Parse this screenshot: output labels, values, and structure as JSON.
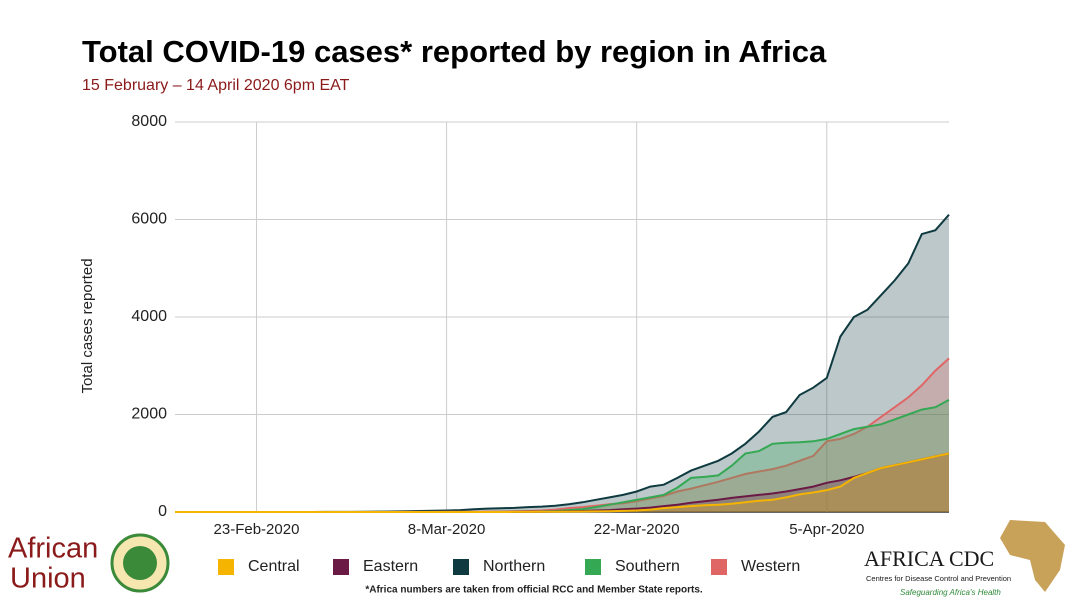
{
  "chart_data": {
    "type": "area",
    "title": "Total COVID-19 cases* reported by region in Africa",
    "subtitle": "15 February – 14 April 2020 6pm EAT",
    "y_label": "Total cases reported",
    "x": [
      "2020-02-17",
      "2020-02-18",
      "2020-02-19",
      "2020-02-20",
      "2020-02-21",
      "2020-02-22",
      "2020-02-23",
      "2020-02-24",
      "2020-02-25",
      "2020-02-26",
      "2020-02-27",
      "2020-02-28",
      "2020-02-29",
      "2020-03-01",
      "2020-03-02",
      "2020-03-03",
      "2020-03-04",
      "2020-03-05",
      "2020-03-06",
      "2020-03-07",
      "2020-03-08",
      "2020-03-09",
      "2020-03-10",
      "2020-03-11",
      "2020-03-12",
      "2020-03-13",
      "2020-03-14",
      "2020-03-15",
      "2020-03-16",
      "2020-03-17",
      "2020-03-18",
      "2020-03-19",
      "2020-03-20",
      "2020-03-21",
      "2020-03-22",
      "2020-03-23",
      "2020-03-24",
      "2020-03-25",
      "2020-03-26",
      "2020-03-27",
      "2020-03-28",
      "2020-03-29",
      "2020-03-30",
      "2020-03-31",
      "2020-04-01",
      "2020-04-02",
      "2020-04-03",
      "2020-04-04",
      "2020-04-05",
      "2020-04-06",
      "2020-04-07",
      "2020-04-08",
      "2020-04-09",
      "2020-04-10",
      "2020-04-11",
      "2020-04-12",
      "2020-04-13",
      "2020-04-14"
    ],
    "xlim": [
      "2020-02-17",
      "2020-04-14"
    ],
    "xticks": [
      {
        "value": "2020-02-23",
        "label": "23-Feb-2020"
      },
      {
        "value": "2020-03-08",
        "label": "8-Mar-2020"
      },
      {
        "value": "2020-03-22",
        "label": "22-Mar-2020"
      },
      {
        "value": "2020-04-05",
        "label": "5-Apr-2020"
      }
    ],
    "ylim": [
      0,
      8000
    ],
    "yticks": [
      0,
      2000,
      4000,
      6000,
      8000
    ],
    "grid": true,
    "legend": "bottom",
    "series": [
      {
        "name": "Northern",
        "color": "#0f3b40",
        "values": [
          0,
          0,
          0,
          0,
          0,
          0,
          0,
          0,
          1,
          1,
          1,
          2,
          2,
          3,
          5,
          8,
          10,
          15,
          20,
          25,
          30,
          40,
          55,
          70,
          75,
          85,
          100,
          110,
          130,
          160,
          200,
          250,
          300,
          350,
          420,
          520,
          560,
          700,
          850,
          950,
          1050,
          1200,
          1400,
          1650,
          1950,
          2050,
          2400,
          2550,
          2750,
          3600,
          4000,
          4150,
          4450,
          4750,
          5100,
          5700,
          5780,
          6100
        ]
      },
      {
        "name": "Western",
        "color": "#e06666",
        "values": [
          0,
          0,
          0,
          0,
          0,
          0,
          0,
          0,
          0,
          0,
          0,
          0,
          0,
          0,
          0,
          1,
          1,
          2,
          2,
          3,
          4,
          5,
          6,
          8,
          10,
          15,
          20,
          30,
          50,
          80,
          100,
          130,
          160,
          180,
          220,
          280,
          330,
          420,
          480,
          550,
          620,
          700,
          780,
          830,
          880,
          950,
          1050,
          1150,
          1450,
          1500,
          1600,
          1750,
          1950,
          2150,
          2350,
          2600,
          2900,
          3150
        ]
      },
      {
        "name": "Southern",
        "color": "#34a853",
        "values": [
          0,
          0,
          0,
          0,
          0,
          0,
          0,
          0,
          0,
          0,
          0,
          0,
          0,
          0,
          0,
          0,
          0,
          0,
          0,
          0,
          0,
          0,
          0,
          1,
          2,
          3,
          7,
          13,
          20,
          40,
          60,
          100,
          150,
          200,
          250,
          300,
          350,
          500,
          700,
          720,
          750,
          950,
          1200,
          1250,
          1400,
          1420,
          1430,
          1450,
          1500,
          1600,
          1700,
          1750,
          1800,
          1900,
          2000,
          2100,
          2150,
          2300
        ]
      },
      {
        "name": "Eastern",
        "color": "#6b1a45",
        "values": [
          0,
          0,
          0,
          0,
          0,
          0,
          0,
          0,
          0,
          0,
          0,
          0,
          0,
          0,
          0,
          0,
          0,
          0,
          0,
          0,
          0,
          0,
          0,
          0,
          1,
          2,
          4,
          6,
          10,
          15,
          20,
          30,
          40,
          55,
          70,
          90,
          120,
          150,
          190,
          220,
          250,
          290,
          320,
          350,
          380,
          420,
          470,
          520,
          600,
          650,
          720,
          800,
          900,
          960,
          1020,
          1080,
          1140,
          1200
        ]
      },
      {
        "name": "Central",
        "color": "#f4b400",
        "values": [
          0,
          0,
          0,
          0,
          0,
          0,
          0,
          0,
          0,
          0,
          0,
          0,
          0,
          0,
          0,
          0,
          0,
          0,
          0,
          0,
          0,
          0,
          0,
          0,
          1,
          2,
          3,
          4,
          6,
          8,
          10,
          13,
          17,
          22,
          30,
          50,
          80,
          100,
          120,
          140,
          150,
          170,
          200,
          230,
          250,
          300,
          360,
          400,
          450,
          520,
          700,
          800,
          900,
          960,
          1020,
          1080,
          1140,
          1200
        ]
      }
    ],
    "legend_order": [
      "Central",
      "Eastern",
      "Northern",
      "Southern",
      "Western"
    ]
  },
  "footnote": "*Africa numbers are taken from official RCC and Member State reports.",
  "logos": {
    "au_line1": "African",
    "au_line2": "Union",
    "cdc_name": "AFRICA CDC",
    "cdc_sub": "Centres for Disease Control and Prevention",
    "cdc_tagline": "Safeguarding Africa's Health"
  }
}
